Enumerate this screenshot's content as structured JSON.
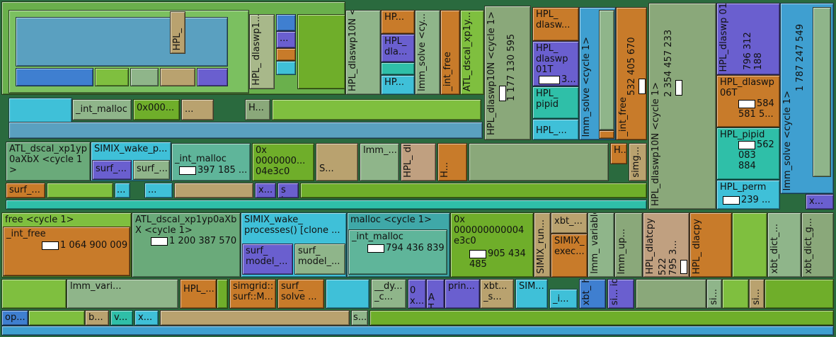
{
  "title": "Callgraph treemap",
  "nodes": {
    "n_hpl_lab1": "HPL_",
    "n_hpl_dlaswp1_small": "HPL_\ndlaswp1...",
    "n_dots1": "...",
    "n_hpl_dlaswp10n_cycle_a": "HPL_dlaswp10N\n<cycle 1>",
    "n_hp_top": "HP...",
    "n_hpl_dla_top": "HPL_\ndla...",
    "n_hp_mid": "HP...",
    "n_lmm_solve_cycle_top": "lmm_solve <cy...",
    "n_int_free_top": "_int_free",
    "n_atl_dscal_top": "ATL_dscal_xp1y...",
    "n_hpl_dlaswp10n_big_vlabel": "HPL_dlaswp10N <cycle 1>",
    "n_hpl_dlaswp10n_big_value": "1 177 130 595",
    "n_hpl_dlasw": "HPL_\ndlasw...",
    "n_hpl_dlaswp01t_mid": "HPL_\ndlaswp\n01T",
    "n_hpl_dlaswp01t_mid_value": "3...",
    "n_hpl_pipid_mid": "HPL_\npipid",
    "n_hpl_mid_small": "HPL_...",
    "n_lmm_solve_cycle_mid": "lmm_solve <cycle 1>",
    "n_int_free_mid": "_int_free",
    "n_int_free_mid_value": "532 405 670",
    "n_hpl_dlaswp10n_right": "HPL_dlaswp10N <cycle 1>",
    "n_hpl_dlaswp10n_right_value": "2 354 457 233",
    "n_hpl_dlaswp01t_r": "HPL_dlaswp\n01T",
    "n_hpl_dlaswp01t_r_value": "796 312\n188",
    "n_hpl_dlaswp06t_r": "HPL_dlaswp\n06T",
    "n_hpl_dlaswp06t_r_value": "584\n581 5...",
    "n_hpl_pipid_r": "HPL_pipid",
    "n_hpl_pipid_r_value": "562\n083\n884",
    "n_hpl_perm_r": "HPL_perm",
    "n_hpl_perm_r_value": "239 ...",
    "n_lmm_solve_cycle_r": "lmm_solve <cycle 1>",
    "n_lmm_solve_cycle_r_value": "1 787 247 549",
    "n_x_r": "x...",
    "n_int_malloc_a": "_int_malloc",
    "n_0x000_a": "0x000...",
    "n_dots_a": "...",
    "n_h_a": "H...",
    "n_atl_dscal_cycle": "ATL_dscal_xp1yp\n0aXbX <cycle 1\n>",
    "n_simix_wake_a": "SIMIX_wake_p...",
    "n_surf_a1": "surf_...",
    "n_surf_a2": "surf_...",
    "n_int_malloc_b": "_int_malloc",
    "n_int_malloc_b_value": "397 185 ...",
    "n_0x_long_a": "0x\n0000000...\n04e3c0",
    "n_s_a": "S...",
    "n_lmm_a": "lmm_...",
    "n_hpl_dlat_a": "HPL_\ndlat...",
    "n_h_b": "H...",
    "n_h_c": "H...",
    "n_simg_a": "simg...",
    "n_surf_b": "surf_...",
    "n_dots_b": "...",
    "n_dots_c": "...",
    "n_x_b": "x...",
    "n_si_a": "si...",
    "n_free_cycle": "free <cycle 1>",
    "n_int_free_b": "_int_free",
    "n_int_free_b_value": "1 064 900 009",
    "n_atl_dscal_cycle_b": "ATL_dscal_xp1yp0aXb\nX <cycle 1>",
    "n_atl_dscal_cycle_b_value": "1 200 387 570",
    "n_simix_wake_b": "SIMIX_wake_\nprocesses() [clone ...",
    "n_surf_model_a": "surf_\nmodel_...",
    "n_surf_model_b": "surf_\nmodel_...",
    "n_malloc_cycle": "malloc <cycle 1>",
    "n_int_malloc_c": "_int_malloc",
    "n_int_malloc_c_value": "794 436 839",
    "n_0x_long_b": "0x\n000000000004\ne3c0",
    "n_0x_long_b_value": "905 434\n485",
    "n_simix_run": "SIMIX_run...",
    "n_xbt_a": "xbt_...",
    "n_simix_exec": "SIMIX_\nexec...",
    "n_lmm_variable": "lmm_\nvariable_fr...",
    "n_lmm_up": "lmm_up...",
    "n_hpl_dlatcpy": "HPL_dlatcpy",
    "n_hpl_dlatcpy_value": "522\n795 3...",
    "n_hpl_dlacpy": "HPL_\ndlacpy",
    "n_xbt_dict_a": "xbt_dict_...",
    "n_xbt_dict_g": "xbt_dict_g...",
    "n_lmm_vari_b": "lmm_vari...",
    "n_hpl_c": "HPL_...",
    "n_simgrid_surf": "simgrid::\nsurf::M...",
    "n_surf_solve": "surf_\nsolve ...",
    "n_dy": "__dy...\n_c...",
    "n_0x_c": "0x...",
    "n_at": "AT...",
    "n_prin": "prin...",
    "n_xbt_s": "xbt...\n_s...",
    "n_sim_b": "SIM...",
    "n_i": "_i...",
    "n_xbt_he": "xbt_\nhe...",
    "n_si_id": "si...\nid...",
    "n_si_c": "si...",
    "n_si_d": "si...",
    "n_op": "op...",
    "n_b": "b...",
    "n_v": "v...",
    "n_x_c": "x...",
    "n_s_b": "s..."
  },
  "colors": {
    "green": "#7fbf3f",
    "olive": "#8aa87a",
    "teal": "#2fbfa8",
    "blue": "#3f7fd0",
    "orange": "#c87b2a",
    "purple": "#6a5fcf",
    "lime": "#6fae2a",
    "cyan": "#3fc0d8",
    "sage": "#8fb58a",
    "tan": "#b9a26f"
  }
}
